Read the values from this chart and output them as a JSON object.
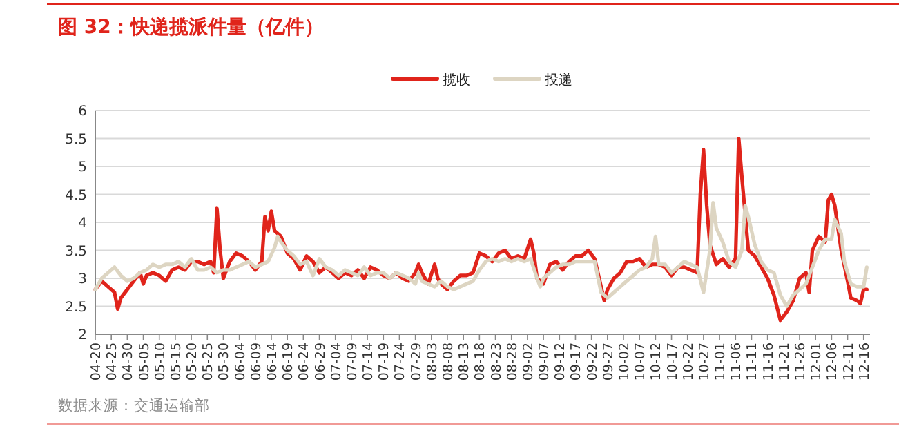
{
  "chart_data": {
    "type": "line",
    "title": "图 32：快递揽派件量（亿件）",
    "annotations": [
      "数据来源：交通运输部"
    ],
    "legend": "top",
    "grid": "y",
    "xlim": [
      "--04-20",
      "--12-18"
    ],
    "xticks": [
      {
        "value": "--04-20",
        "label": "04-20"
      },
      {
        "value": "--04-25",
        "label": "04-25"
      },
      {
        "value": "--04-30",
        "label": "04-30"
      },
      {
        "value": "--05-05",
        "label": "05-05"
      },
      {
        "value": "--05-10",
        "label": "05-10"
      },
      {
        "value": "--05-15",
        "label": "05-15"
      },
      {
        "value": "--05-20",
        "label": "05-20"
      },
      {
        "value": "--05-25",
        "label": "05-25"
      },
      {
        "value": "--05-30",
        "label": "05-30"
      },
      {
        "value": "--06-04",
        "label": "06-04"
      },
      {
        "value": "--06-09",
        "label": "06-09"
      },
      {
        "value": "--06-14",
        "label": "06-14"
      },
      {
        "value": "--06-19",
        "label": "06-19"
      },
      {
        "value": "--06-24",
        "label": "06-24"
      },
      {
        "value": "--06-29",
        "label": "06-29"
      },
      {
        "value": "--07-04",
        "label": "07-04"
      },
      {
        "value": "--07-09",
        "label": "07-09"
      },
      {
        "value": "--07-14",
        "label": "07-14"
      },
      {
        "value": "--07-19",
        "label": "07-19"
      },
      {
        "value": "--07-24",
        "label": "07-24"
      },
      {
        "value": "--07-29",
        "label": "07-29"
      },
      {
        "value": "--08-03",
        "label": "08-03"
      },
      {
        "value": "--08-08",
        "label": "08-08"
      },
      {
        "value": "--08-13",
        "label": "08-13"
      },
      {
        "value": "--08-18",
        "label": "08-18"
      },
      {
        "value": "--08-23",
        "label": "08-23"
      },
      {
        "value": "--08-28",
        "label": "08-28"
      },
      {
        "value": "--09-02",
        "label": "09-02"
      },
      {
        "value": "--09-07",
        "label": "09-07"
      },
      {
        "value": "--09-12",
        "label": "09-12"
      },
      {
        "value": "--09-17",
        "label": "09-17"
      },
      {
        "value": "--09-22",
        "label": "09-22"
      },
      {
        "value": "--09-27",
        "label": "09-27"
      },
      {
        "value": "--10-02",
        "label": "10-02"
      },
      {
        "value": "--10-07",
        "label": "10-07"
      },
      {
        "value": "--10-12",
        "label": "10-12"
      },
      {
        "value": "--10-17",
        "label": "10-17"
      },
      {
        "value": "--10-22",
        "label": "10-22"
      },
      {
        "value": "--10-27",
        "label": "10-27"
      },
      {
        "value": "--11-01",
        "label": "11-01"
      },
      {
        "value": "--11-06",
        "label": "11-06"
      },
      {
        "value": "--11-11",
        "label": "11-11"
      },
      {
        "value": "--11-16",
        "label": "11-16"
      },
      {
        "value": "--11-21",
        "label": "11-21"
      },
      {
        "value": "--11-26",
        "label": "11-26"
      },
      {
        "value": "--12-01",
        "label": "12-01"
      },
      {
        "value": "--12-06",
        "label": "12-06"
      },
      {
        "value": "--12-11",
        "label": "12-11"
      },
      {
        "value": "--12-16",
        "label": "12-16"
      }
    ],
    "ylim": [
      2,
      6
    ],
    "yticks": [
      2,
      2.5,
      3,
      3.5,
      4,
      4.5,
      5,
      5.5,
      6
    ],
    "series": [
      {
        "name": "揽收",
        "color": "#e0241b",
        "x": [
          "--04-20",
          "--04-22",
          "--04-24",
          "--04-26",
          "--04-27",
          "--04-28",
          "--04-30",
          "--05-02",
          "--05-04",
          "--05-05",
          "--05-06",
          "--05-08",
          "--05-10",
          "--05-12",
          "--05-14",
          "--05-16",
          "--05-18",
          "--05-20",
          "--05-22",
          "--05-24",
          "--05-26",
          "--05-27",
          "--05-28",
          "--05-29",
          "--05-30",
          "--06-01",
          "--06-03",
          "--06-05",
          "--06-07",
          "--06-09",
          "--06-11",
          "--06-12",
          "--06-13",
          "--06-14",
          "--06-15",
          "--06-17",
          "--06-19",
          "--06-21",
          "--06-23",
          "--06-25",
          "--06-27",
          "--06-29",
          "--07-01",
          "--07-03",
          "--07-05",
          "--07-07",
          "--07-09",
          "--07-11",
          "--07-13",
          "--07-15",
          "--07-17",
          "--07-19",
          "--07-21",
          "--07-23",
          "--07-25",
          "--07-27",
          "--07-29",
          "--07-30",
          "--07-31",
          "--08-02",
          "--08-04",
          "--08-05",
          "--08-06",
          "--08-08",
          "--08-10",
          "--08-12",
          "--08-14",
          "--08-16",
          "--08-18",
          "--08-20",
          "--08-22",
          "--08-24",
          "--08-26",
          "--08-28",
          "--08-30",
          "--09-01",
          "--09-03",
          "--09-04",
          "--09-05",
          "--09-07",
          "--09-09",
          "--09-11",
          "--09-13",
          "--09-15",
          "--09-17",
          "--09-19",
          "--09-21",
          "--09-23",
          "--09-25",
          "--09-26",
          "--09-27",
          "--09-29",
          "--10-01",
          "--10-03",
          "--10-05",
          "--10-07",
          "--10-09",
          "--10-11",
          "--10-13",
          "--10-15",
          "--10-17",
          "--10-19",
          "--10-21",
          "--10-23",
          "--10-25",
          "--10-26",
          "--10-27",
          "--10-28",
          "--10-29",
          "--10-31",
          "--11-02",
          "--11-04",
          "--11-06",
          "--11-07",
          "--11-08",
          "--11-10",
          "--11-12",
          "--11-14",
          "--11-16",
          "--11-18",
          "--11-20",
          "--11-22",
          "--11-24",
          "--11-26",
          "--11-28",
          "--11-29",
          "--11-30",
          "--12-02",
          "--12-04",
          "--12-05",
          "--12-06",
          "--12-07",
          "--12-09",
          "--12-11",
          "--12-12",
          "--12-14",
          "--12-15",
          "--12-16",
          "--12-17"
        ],
        "values": [
          2.8,
          2.95,
          2.85,
          2.75,
          2.45,
          2.65,
          2.8,
          2.95,
          3.1,
          2.9,
          3.05,
          3.1,
          3.05,
          2.95,
          3.15,
          3.2,
          3.15,
          3.3,
          3.3,
          3.25,
          3.3,
          3.1,
          4.25,
          3.5,
          3.0,
          3.3,
          3.45,
          3.4,
          3.3,
          3.15,
          3.3,
          4.1,
          3.85,
          4.2,
          3.85,
          3.75,
          3.45,
          3.35,
          3.15,
          3.4,
          3.3,
          3.1,
          3.2,
          3.1,
          3.0,
          3.1,
          3.05,
          3.15,
          3.0,
          3.2,
          3.15,
          3.05,
          3.0,
          3.1,
          3.0,
          2.95,
          3.1,
          3.25,
          3.1,
          2.9,
          3.25,
          3.0,
          2.9,
          2.8,
          2.95,
          3.05,
          3.05,
          3.1,
          3.45,
          3.4,
          3.3,
          3.45,
          3.5,
          3.35,
          3.4,
          3.35,
          3.7,
          3.45,
          3.0,
          2.9,
          3.25,
          3.3,
          3.15,
          3.3,
          3.4,
          3.4,
          3.5,
          3.35,
          2.85,
          2.6,
          2.8,
          3.0,
          3.1,
          3.3,
          3.3,
          3.35,
          3.2,
          3.25,
          3.25,
          3.2,
          3.05,
          3.2,
          3.2,
          3.15,
          3.1,
          4.5,
          5.3,
          4.3,
          3.6,
          3.25,
          3.35,
          3.2,
          3.35,
          5.5,
          4.8,
          3.5,
          3.4,
          3.2,
          3.0,
          2.7,
          2.25,
          2.4,
          2.6,
          3.0,
          3.1,
          2.75,
          3.5,
          3.75,
          3.65,
          4.4,
          4.5,
          4.3,
          3.5,
          2.95,
          2.65,
          2.6,
          2.55,
          2.8,
          2.8
        ]
      },
      {
        "name": "投递",
        "color": "#ddd5c2",
        "x": [
          "--04-20",
          "--04-22",
          "--04-24",
          "--04-26",
          "--04-28",
          "--04-30",
          "--05-02",
          "--05-04",
          "--05-06",
          "--05-08",
          "--05-10",
          "--05-12",
          "--05-14",
          "--05-16",
          "--05-18",
          "--05-20",
          "--05-22",
          "--05-24",
          "--05-26",
          "--05-28",
          "--05-30",
          "--06-01",
          "--06-03",
          "--06-05",
          "--06-07",
          "--06-09",
          "--06-11",
          "--06-13",
          "--06-15",
          "--06-16",
          "--06-17",
          "--06-19",
          "--06-21",
          "--06-23",
          "--06-25",
          "--06-27",
          "--06-29",
          "--07-01",
          "--07-03",
          "--07-05",
          "--07-07",
          "--07-09",
          "--07-11",
          "--07-13",
          "--07-15",
          "--07-17",
          "--07-19",
          "--07-21",
          "--07-23",
          "--07-25",
          "--07-27",
          "--07-29",
          "--07-30",
          "--07-31",
          "--08-02",
          "--08-04",
          "--08-06",
          "--08-08",
          "--08-10",
          "--08-12",
          "--08-14",
          "--08-16",
          "--08-18",
          "--08-20",
          "--08-22",
          "--08-24",
          "--08-26",
          "--08-28",
          "--08-30",
          "--09-01",
          "--09-03",
          "--09-05",
          "--09-06",
          "--09-07",
          "--09-09",
          "--09-11",
          "--09-13",
          "--09-15",
          "--09-17",
          "--09-19",
          "--09-21",
          "--09-23",
          "--09-25",
          "--09-27",
          "--09-29",
          "--10-01",
          "--10-03",
          "--10-05",
          "--10-07",
          "--10-09",
          "--10-11",
          "--10-12",
          "--10-13",
          "--10-15",
          "--10-17",
          "--10-19",
          "--10-21",
          "--10-23",
          "--10-25",
          "--10-27",
          "--10-29",
          "--10-30",
          "--10-31",
          "--11-02",
          "--11-04",
          "--11-06",
          "--11-08",
          "--11-09",
          "--11-10",
          "--11-12",
          "--11-14",
          "--11-16",
          "--11-18",
          "--11-20",
          "--11-22",
          "--11-24",
          "--11-26",
          "--11-28",
          "--11-30",
          "--12-02",
          "--12-04",
          "--12-06",
          "--12-07",
          "--12-09",
          "--12-10",
          "--12-12",
          "--12-14",
          "--12-16",
          "--12-17"
        ],
        "values": [
          2.8,
          3.0,
          3.1,
          3.2,
          3.05,
          2.95,
          3.0,
          3.1,
          3.15,
          3.25,
          3.2,
          3.25,
          3.25,
          3.3,
          3.2,
          3.35,
          3.15,
          3.15,
          3.2,
          3.1,
          3.15,
          3.15,
          3.2,
          3.25,
          3.3,
          3.2,
          3.25,
          3.3,
          3.55,
          3.75,
          3.65,
          3.5,
          3.4,
          3.25,
          3.3,
          3.05,
          3.35,
          3.2,
          3.15,
          3.05,
          3.15,
          3.1,
          3.05,
          3.2,
          3.05,
          3.1,
          3.1,
          3.0,
          3.1,
          3.05,
          3.0,
          2.9,
          3.1,
          2.95,
          2.9,
          2.85,
          2.95,
          2.85,
          2.8,
          2.85,
          2.9,
          2.95,
          3.15,
          3.3,
          3.35,
          3.3,
          3.35,
          3.3,
          3.35,
          3.3,
          3.35,
          3.0,
          2.85,
          3.0,
          3.1,
          3.2,
          3.25,
          3.25,
          3.3,
          3.3,
          3.3,
          3.3,
          2.75,
          2.65,
          2.75,
          2.85,
          2.95,
          3.05,
          3.15,
          3.2,
          3.35,
          3.75,
          3.25,
          3.25,
          3.1,
          3.2,
          3.3,
          3.25,
          3.2,
          2.75,
          3.5,
          4.35,
          3.9,
          3.65,
          3.3,
          3.2,
          3.5,
          4.3,
          4.1,
          3.6,
          3.3,
          3.15,
          3.1,
          2.7,
          2.5,
          2.7,
          2.8,
          2.9,
          3.2,
          3.5,
          3.7,
          3.7,
          4.05,
          3.8,
          3.3,
          2.9,
          2.85,
          2.85,
          3.2
        ]
      }
    ]
  }
}
